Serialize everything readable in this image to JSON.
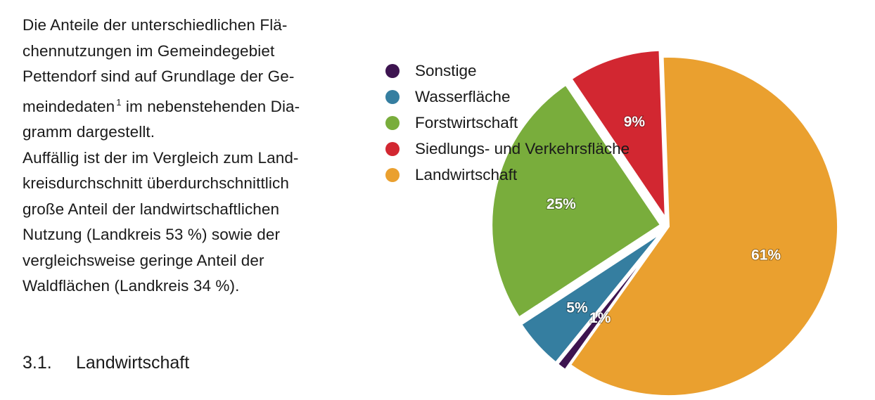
{
  "paragraph": {
    "lines": [
      "Die Anteile der unterschiedlichen Flä-",
      "chennutzungen im Gemeindegebiet",
      "Pettendorf sind auf Grundlage der Ge-",
      "meindedaten",
      "im nebenstehenden Dia-",
      "gramm dargestellt.",
      "Auffällig ist der im Vergleich zum Land-",
      "kreisdurchschnitt überdurchschnittlich",
      "große Anteil der landwirtschaftlichen",
      "Nutzung (Landkreis 53 %) sowie der",
      "vergleichsweise geringe Anteil der",
      "Waldflächen (Landkreis 34 %)."
    ],
    "footnote_marker": "1"
  },
  "section": {
    "number": "3.1.",
    "title": "Landwirtschaft"
  },
  "chart_data": {
    "type": "pie",
    "unit": "%",
    "legend_position": "left",
    "legend_order": [
      "Sonstige",
      "Wasserfläche",
      "Forstwirtschaft",
      "Siedlungs- und Verkehrsfläche",
      "Landwirtschaft"
    ],
    "slices": [
      {
        "name": "Landwirtschaft",
        "value": 61,
        "label": "61%",
        "color": "#eaa02f",
        "exploded": false
      },
      {
        "name": "Sonstige",
        "value": 1,
        "label": "1%",
        "color": "#3d1450",
        "exploded": true
      },
      {
        "name": "Wasserfläche",
        "value": 5,
        "label": "5%",
        "color": "#357ea0",
        "exploded": true
      },
      {
        "name": "Forstwirtschaft",
        "value": 25,
        "label": "25%",
        "color": "#79ad3c",
        "exploded": true
      },
      {
        "name": "Siedlungs- und Verkehrsfläche",
        "value": 9,
        "label": "9%",
        "color": "#d22731",
        "exploded": true
      }
    ]
  }
}
